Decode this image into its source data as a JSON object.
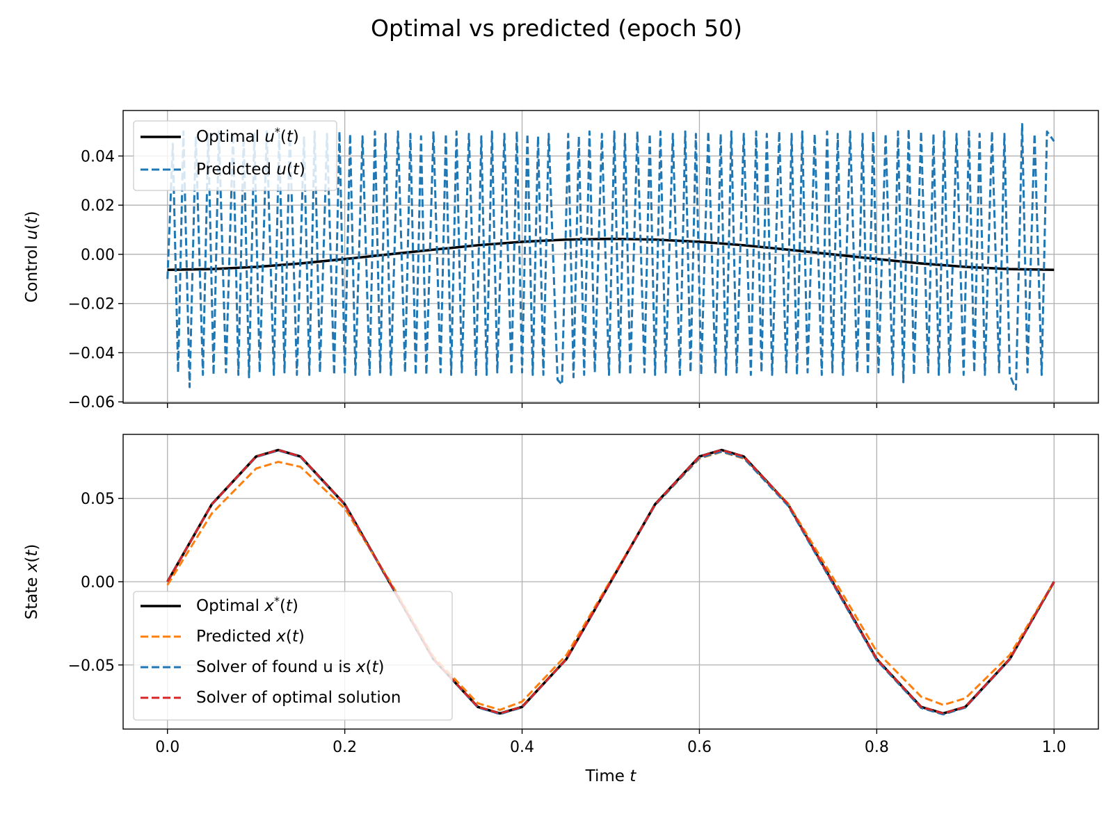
{
  "figure": {
    "title": "Optimal vs predicted (epoch 50)"
  },
  "chart_data": [
    {
      "type": "line",
      "name": "control-panel",
      "ylabel": "Control u(t)",
      "xlabel": "",
      "xlim": [
        -0.05,
        1.05
      ],
      "ylim": [
        -0.0605,
        0.0585
      ],
      "xticks": [
        0.0,
        0.2,
        0.4,
        0.6,
        0.8,
        1.0
      ],
      "xtick_labels_shown": false,
      "yticks": [
        -0.06,
        -0.04,
        -0.02,
        0.0,
        0.02,
        0.04
      ],
      "ytick_labels": [
        "−0.06",
        "−0.04",
        "−0.02",
        "0.00",
        "0.02",
        "0.04"
      ],
      "grid": true,
      "legend_position": "upper-left",
      "series": [
        {
          "name": "Optimal u*(t)",
          "legend_label": "Optimal u*(t)",
          "color": "#000000",
          "style": "solid",
          "x": [
            0.0,
            0.05,
            0.1,
            0.15,
            0.2,
            0.25,
            0.3,
            0.35,
            0.4,
            0.45,
            0.5,
            0.55,
            0.6,
            0.65,
            0.7,
            0.75,
            0.8,
            0.85,
            0.9,
            0.95,
            1.0
          ],
          "y": [
            -0.0063,
            -0.006,
            -0.0051,
            -0.0037,
            -0.0019,
            0.0,
            0.0019,
            0.0037,
            0.0051,
            0.006,
            0.0063,
            0.006,
            0.0051,
            0.0037,
            0.0019,
            0.0,
            -0.0019,
            -0.0037,
            -0.0051,
            -0.006,
            -0.0063
          ]
        },
        {
          "name": "Predicted u(t)",
          "legend_label": "Predicted u(t)",
          "color": "#1f77b4",
          "style": "dashed",
          "x": [
            0.0,
            0.006,
            0.012,
            0.018,
            0.025,
            0.032,
            0.04,
            0.046,
            0.052,
            0.058,
            0.066,
            0.074,
            0.08,
            0.086,
            0.092,
            0.098,
            0.104,
            0.112,
            0.12,
            0.126,
            0.132,
            0.138,
            0.146,
            0.154,
            0.16,
            0.166,
            0.172,
            0.18,
            0.188,
            0.194,
            0.2,
            0.206,
            0.212,
            0.22,
            0.228,
            0.234,
            0.24,
            0.246,
            0.252,
            0.26,
            0.268,
            0.274,
            0.28,
            0.286,
            0.292,
            0.3,
            0.308,
            0.314,
            0.32,
            0.326,
            0.332,
            0.34,
            0.348,
            0.354,
            0.36,
            0.366,
            0.372,
            0.38,
            0.388,
            0.394,
            0.4,
            0.406,
            0.412,
            0.418,
            0.424,
            0.43,
            0.44,
            0.445,
            0.452,
            0.458,
            0.464,
            0.47,
            0.476,
            0.482,
            0.49,
            0.498,
            0.504,
            0.51,
            0.516,
            0.522,
            0.53,
            0.538,
            0.544,
            0.55,
            0.556,
            0.562,
            0.57,
            0.578,
            0.584,
            0.59,
            0.596,
            0.602,
            0.61,
            0.618,
            0.624,
            0.63,
            0.636,
            0.642,
            0.65,
            0.658,
            0.664,
            0.67,
            0.676,
            0.682,
            0.69,
            0.698,
            0.704,
            0.71,
            0.716,
            0.722,
            0.73,
            0.738,
            0.744,
            0.75,
            0.756,
            0.762,
            0.77,
            0.778,
            0.784,
            0.79,
            0.796,
            0.802,
            0.81,
            0.818,
            0.824,
            0.83,
            0.836,
            0.842,
            0.85,
            0.858,
            0.864,
            0.87,
            0.876,
            0.882,
            0.89,
            0.898,
            0.904,
            0.91,
            0.916,
            0.922,
            0.93,
            0.938,
            0.944,
            0.95,
            0.957,
            0.964,
            0.97,
            0.978,
            0.986,
            0.992,
            1.0
          ],
          "y": [
            -0.01,
            0.045,
            -0.048,
            0.05,
            -0.054,
            0.048,
            -0.049,
            0.049,
            -0.049,
            0.05,
            -0.048,
            0.049,
            -0.049,
            0.048,
            -0.05,
            0.049,
            -0.048,
            0.05,
            -0.049,
            0.049,
            -0.048,
            0.05,
            -0.049,
            0.048,
            -0.049,
            0.05,
            -0.048,
            0.049,
            -0.049,
            0.05,
            -0.048,
            0.049,
            -0.049,
            0.048,
            -0.049,
            0.05,
            -0.048,
            0.049,
            -0.049,
            0.05,
            -0.048,
            0.049,
            -0.049,
            0.048,
            -0.049,
            0.05,
            -0.048,
            0.049,
            -0.049,
            0.05,
            -0.048,
            0.049,
            -0.049,
            0.048,
            -0.049,
            0.05,
            -0.048,
            0.049,
            -0.049,
            0.05,
            -0.048,
            0.049,
            -0.049,
            0.048,
            -0.049,
            0.049,
            -0.051,
            -0.053,
            0.049,
            -0.05,
            0.048,
            -0.049,
            0.05,
            -0.048,
            0.049,
            -0.049,
            0.05,
            -0.048,
            0.049,
            -0.049,
            0.05,
            -0.048,
            0.049,
            -0.049,
            0.05,
            -0.048,
            0.049,
            -0.049,
            0.05,
            -0.048,
            0.049,
            -0.049,
            0.05,
            -0.048,
            0.049,
            -0.049,
            0.05,
            -0.048,
            0.049,
            -0.049,
            0.05,
            -0.048,
            0.049,
            -0.049,
            0.05,
            -0.048,
            0.049,
            -0.049,
            0.05,
            -0.048,
            0.049,
            -0.049,
            0.05,
            -0.048,
            0.049,
            -0.049,
            0.05,
            -0.048,
            0.049,
            -0.049,
            0.05,
            -0.048,
            0.049,
            -0.049,
            0.05,
            -0.052,
            0.051,
            -0.049,
            0.05,
            -0.048,
            0.049,
            -0.049,
            0.05,
            -0.048,
            0.049,
            -0.049,
            0.05,
            -0.048,
            0.049,
            -0.049,
            0.05,
            -0.048,
            0.049,
            -0.049,
            -0.055,
            0.053,
            -0.048,
            0.049,
            -0.049,
            0.05,
            0.046
          ]
        }
      ]
    },
    {
      "type": "line",
      "name": "state-panel",
      "ylabel": "State x(t)",
      "xlabel": "Time t",
      "xlim": [
        -0.05,
        1.05
      ],
      "ylim": [
        -0.0885,
        0.0885
      ],
      "xticks": [
        0.0,
        0.2,
        0.4,
        0.6,
        0.8,
        1.0
      ],
      "xtick_labels": [
        "0.0",
        "0.2",
        "0.4",
        "0.6",
        "0.8",
        "1.0"
      ],
      "yticks": [
        -0.05,
        0.0,
        0.05
      ],
      "ytick_labels": [
        "−0.05",
        "0.00",
        "0.05"
      ],
      "grid": true,
      "legend_position": "lower-left",
      "series": [
        {
          "name": "Optimal x*(t)",
          "legend_label": "Optimal x*(t)",
          "color": "#000000",
          "style": "solid",
          "x": [
            0.0,
            0.05,
            0.1,
            0.125,
            0.15,
            0.2,
            0.25,
            0.3,
            0.35,
            0.375,
            0.4,
            0.45,
            0.5,
            0.55,
            0.6,
            0.625,
            0.65,
            0.7,
            0.75,
            0.8,
            0.85,
            0.875,
            0.9,
            0.95,
            1.0
          ],
          "y": [
            0.0,
            0.0465,
            0.0752,
            0.0791,
            0.0752,
            0.0465,
            0.0,
            -0.0465,
            -0.0752,
            -0.0791,
            -0.0752,
            -0.0465,
            0.0,
            0.0465,
            0.0752,
            0.0791,
            0.0752,
            0.0465,
            0.0,
            -0.0465,
            -0.0752,
            -0.0791,
            -0.0752,
            -0.0465,
            0.0
          ]
        },
        {
          "name": "Predicted x(t)",
          "legend_label": "Predicted x(t)",
          "color": "#ff7f0e",
          "style": "dashed",
          "x": [
            0.0,
            0.05,
            0.1,
            0.125,
            0.15,
            0.2,
            0.25,
            0.3,
            0.35,
            0.375,
            0.4,
            0.45,
            0.5,
            0.55,
            0.6,
            0.625,
            0.65,
            0.7,
            0.75,
            0.8,
            0.85,
            0.875,
            0.9,
            0.95,
            1.0
          ],
          "y": [
            -0.002,
            0.041,
            0.068,
            0.072,
            0.069,
            0.044,
            0.001,
            -0.045,
            -0.073,
            -0.077,
            -0.072,
            -0.044,
            0.001,
            0.046,
            0.074,
            0.078,
            0.074,
            0.047,
            0.003,
            -0.042,
            -0.069,
            -0.074,
            -0.07,
            -0.044,
            0.0
          ]
        },
        {
          "name": "Solver of found u is x(t)",
          "legend_label": "Solver of found u is x(t)",
          "color": "#1f77b4",
          "style": "dashed",
          "x": [
            0.0,
            0.05,
            0.1,
            0.125,
            0.15,
            0.2,
            0.25,
            0.3,
            0.35,
            0.375,
            0.4,
            0.45,
            0.5,
            0.55,
            0.6,
            0.625,
            0.65,
            0.7,
            0.75,
            0.8,
            0.85,
            0.875,
            0.9,
            0.95,
            1.0
          ],
          "y": [
            0.0,
            0.0463,
            0.0749,
            0.0788,
            0.0749,
            0.0462,
            -0.0002,
            -0.0467,
            -0.0755,
            -0.0795,
            -0.0755,
            -0.0467,
            -0.0002,
            0.046,
            0.0744,
            0.0782,
            0.0743,
            0.0456,
            -0.0008,
            -0.0472,
            -0.0758,
            -0.0797,
            -0.0756,
            -0.0468,
            0.0
          ]
        },
        {
          "name": "Solver of optimal solution",
          "legend_label": "Solver of optimal solution",
          "color": "#d62728",
          "style": "dashed",
          "x": [
            0.0,
            0.05,
            0.1,
            0.125,
            0.15,
            0.2,
            0.25,
            0.3,
            0.35,
            0.375,
            0.4,
            0.45,
            0.5,
            0.55,
            0.6,
            0.625,
            0.65,
            0.7,
            0.75,
            0.8,
            0.85,
            0.875,
            0.9,
            0.95,
            1.0
          ],
          "y": [
            0.0,
            0.0465,
            0.0752,
            0.0791,
            0.0752,
            0.0465,
            0.0,
            -0.0465,
            -0.0752,
            -0.0791,
            -0.0752,
            -0.0465,
            0.0,
            0.0465,
            0.0752,
            0.0791,
            0.0752,
            0.0465,
            0.0,
            -0.0465,
            -0.0752,
            -0.0791,
            -0.0752,
            -0.0465,
            0.0
          ]
        }
      ]
    }
  ]
}
